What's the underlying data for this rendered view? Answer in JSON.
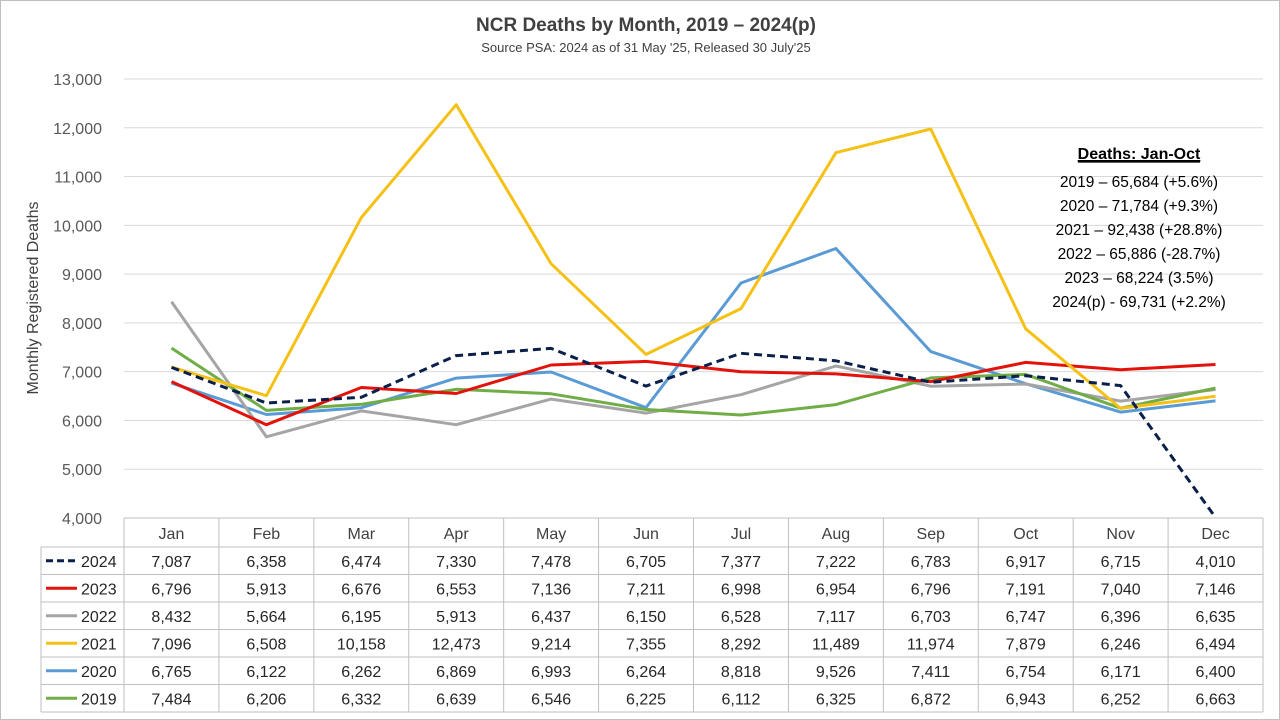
{
  "chart_data": {
    "type": "line",
    "title": "NCR Deaths by Month, 2019 – 2024(p)",
    "subtitle": "Source PSA: 2024 as of 31 May '25, Released 30 July'25",
    "ylabel": "Monthly Registered Deaths",
    "ylim": [
      4000,
      13000
    ],
    "yticks": [
      "4,000",
      "5,000",
      "6,000",
      "7,000",
      "8,000",
      "9,000",
      "10,000",
      "11,000",
      "12,000",
      "13,000"
    ],
    "grid": true,
    "legend": "data-table-left",
    "categories": [
      "Jan",
      "Feb",
      "Mar",
      "Apr",
      "May",
      "Jun",
      "Jul",
      "Aug",
      "Sep",
      "Oct",
      "Nov",
      "Dec"
    ],
    "series": [
      {
        "name": "2024",
        "color": "#0b1f4b",
        "dashed": true,
        "values": [
          7087,
          6358,
          6474,
          7330,
          7478,
          6705,
          7377,
          7222,
          6783,
          6917,
          6715,
          4010
        ],
        "labels": [
          "7,087",
          "6,358",
          "6,474",
          "7,330",
          "7,478",
          "6,705",
          "7,377",
          "7,222",
          "6,783",
          "6,917",
          "6,715",
          "4,010"
        ]
      },
      {
        "name": "2023",
        "color": "#e3120b",
        "dashed": false,
        "values": [
          6796,
          5913,
          6676,
          6553,
          7136,
          7211,
          6998,
          6954,
          6796,
          7191,
          7040,
          7146
        ],
        "labels": [
          "6,796",
          "5,913",
          "6,676",
          "6,553",
          "7,136",
          "7,211",
          "6,998",
          "6,954",
          "6,796",
          "7,191",
          "7,040",
          "7,146"
        ]
      },
      {
        "name": "2022",
        "color": "#a5a5a5",
        "dashed": false,
        "values": [
          8432,
          5664,
          6195,
          5913,
          6437,
          6150,
          6528,
          7117,
          6703,
          6747,
          6396,
          6635
        ],
        "labels": [
          "8,432",
          "5,664",
          "6,195",
          "5,913",
          "6,437",
          "6,150",
          "6,528",
          "7,117",
          "6,703",
          "6,747",
          "6,396",
          "6,635"
        ]
      },
      {
        "name": "2021",
        "color": "#f5c117",
        "dashed": false,
        "values": [
          7096,
          6508,
          10158,
          12473,
          9214,
          7355,
          8292,
          11489,
          11974,
          7879,
          6246,
          6494
        ],
        "labels": [
          "7,096",
          "6,508",
          "10,158",
          "12,473",
          "9,214",
          "7,355",
          "8,292",
          "11,489",
          "11,974",
          "7,879",
          "6,246",
          "6,494"
        ]
      },
      {
        "name": "2020",
        "color": "#5b9bd5",
        "dashed": false,
        "values": [
          6765,
          6122,
          6262,
          6869,
          6993,
          6264,
          8818,
          9526,
          7411,
          6754,
          6171,
          6400
        ],
        "labels": [
          "6,765",
          "6,122",
          "6,262",
          "6,869",
          "6,993",
          "6,264",
          "8,818",
          "9,526",
          "7,411",
          "6,754",
          "6,171",
          "6,400"
        ]
      },
      {
        "name": "2019",
        "color": "#70ad47",
        "dashed": false,
        "values": [
          7484,
          6206,
          6332,
          6639,
          6546,
          6225,
          6112,
          6325,
          6872,
          6943,
          6252,
          6663
        ],
        "labels": [
          "7,484",
          "6,206",
          "6,332",
          "6,639",
          "6,546",
          "6,225",
          "6,112",
          "6,325",
          "6,872",
          "6,943",
          "6,252",
          "6,663"
        ]
      }
    ],
    "annotation": {
      "heading": "Deaths: Jan-Oct",
      "lines": [
        "2019 – 65,684 (+5.6%)",
        "2020 – 71,784  (+9.3%)",
        "2021 – 92,438 (+28.8%)",
        "2022 – 65,886  (-28.7%)",
        "2023 – 68,224 (3.5%)",
        "2024(p) -  69,731 (+2.2%)"
      ]
    }
  }
}
